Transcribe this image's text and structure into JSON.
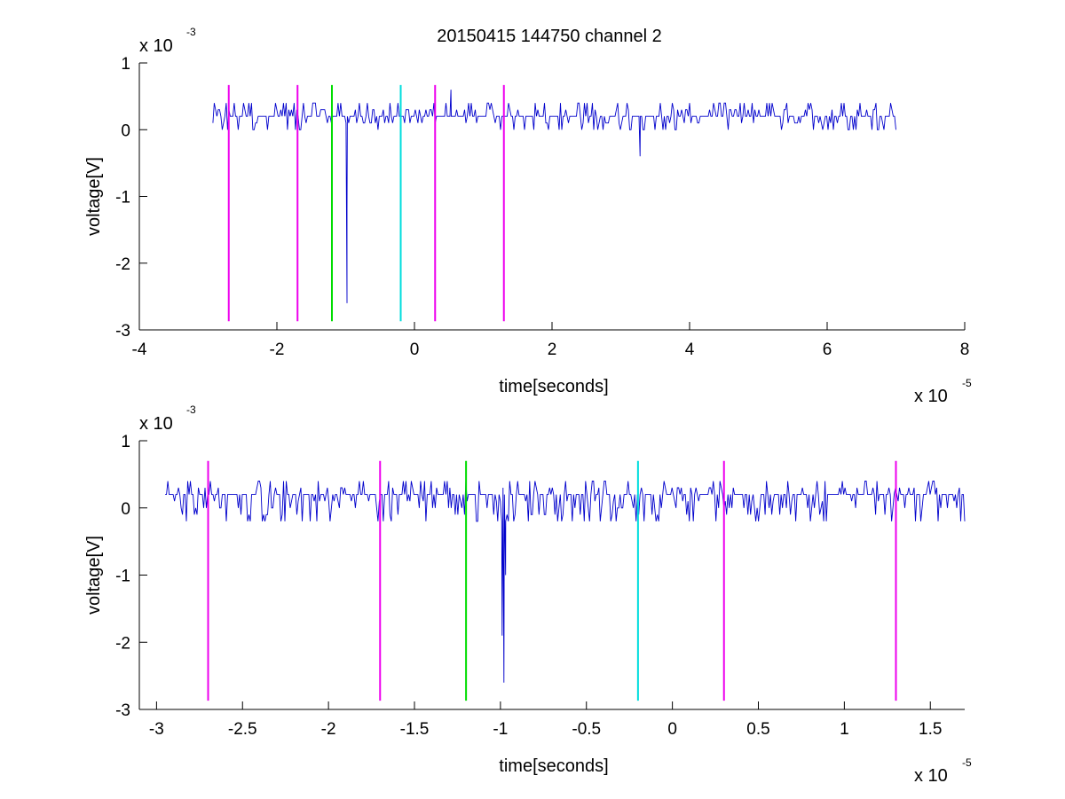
{
  "figure": {
    "title": "20150415 144750 channel 2"
  },
  "chart_data": [
    {
      "type": "line",
      "title": "20150415 144750 channel 2",
      "xlabel": "time[seconds]",
      "ylabel": "voltage[V]",
      "xlim": [
        -4,
        8
      ],
      "ylim": [
        -3,
        1
      ],
      "x_multiplier": {
        "base": "x 10",
        "exponent": "-5"
      },
      "y_multiplier": {
        "base": "x 10",
        "exponent": "-3"
      },
      "x_ticks": [
        -4,
        -2,
        0,
        2,
        4,
        6,
        8
      ],
      "x_tick_labels": [
        "-4",
        "-2",
        "0",
        "2",
        "4",
        "6",
        "8"
      ],
      "y_ticks": [
        -3,
        -2,
        -1,
        0,
        1
      ],
      "y_tick_labels": [
        "-3",
        "-2",
        "-1",
        "0",
        "1"
      ],
      "grid": false,
      "series": [
        {
          "color": "#0000cc",
          "x_range": [
            -2.93,
            7.0
          ],
          "noise_levels": [
            0.0,
            0.1,
            0.2,
            0.3,
            0.4
          ],
          "baseline": 0.2,
          "spikes": [
            {
              "x": -0.98,
              "y": -2.6
            },
            {
              "x": -0.98,
              "y": -1.2
            },
            {
              "x": 0.53,
              "y": 0.6
            },
            {
              "x": 3.28,
              "y": -0.4
            }
          ]
        }
      ],
      "markers": [
        {
          "x": -2.7,
          "y_range": [
            -2.87,
            0.67
          ],
          "color": "#ee00ee"
        },
        {
          "x": -1.7,
          "y_range": [
            -2.87,
            0.67
          ],
          "color": "#ee00ee"
        },
        {
          "x": -1.2,
          "y_range": [
            -2.87,
            0.67
          ],
          "color": "#00dd00"
        },
        {
          "x": -0.2,
          "y_range": [
            -2.87,
            0.67
          ],
          "color": "#00dddd"
        },
        {
          "x": 0.3,
          "y_range": [
            -2.87,
            0.67
          ],
          "color": "#ee00ee"
        },
        {
          "x": 1.3,
          "y_range": [
            -2.87,
            0.67
          ],
          "color": "#ee00ee"
        }
      ]
    },
    {
      "type": "line",
      "title": "",
      "xlabel": "time[seconds]",
      "ylabel": "voltage[V]",
      "xlim": [
        -3.1,
        1.7
      ],
      "ylim": [
        -3,
        1
      ],
      "x_multiplier": {
        "base": "x 10",
        "exponent": "-5"
      },
      "y_multiplier": {
        "base": "x 10",
        "exponent": "-3"
      },
      "x_ticks": [
        -3,
        -2.5,
        -2,
        -1.5,
        -1,
        -0.5,
        0,
        0.5,
        1,
        1.5
      ],
      "x_tick_labels": [
        "-3",
        "-2.5",
        "-2",
        "-1.5",
        "-1",
        "-0.5",
        "0",
        "0.5",
        "1",
        "1.5"
      ],
      "y_ticks": [
        -3,
        -2,
        -1,
        0,
        1
      ],
      "y_tick_labels": [
        "-3",
        "-2",
        "-1",
        "0",
        "1"
      ],
      "grid": false,
      "series": [
        {
          "color": "#0000cc",
          "x_range": [
            -2.95,
            1.7
          ],
          "noise_levels": [
            -0.2,
            -0.1,
            0.0,
            0.1,
            0.2,
            0.3,
            0.4
          ],
          "baseline": 0.2,
          "spikes": [
            {
              "x": -0.98,
              "y": -2.6
            },
            {
              "x": -0.99,
              "y": -1.9
            },
            {
              "x": -0.97,
              "y": -1.0
            }
          ]
        }
      ],
      "markers": [
        {
          "x": -2.7,
          "y_range": [
            -2.87,
            0.7
          ],
          "color": "#ee00ee"
        },
        {
          "x": -1.7,
          "y_range": [
            -2.87,
            0.7
          ],
          "color": "#ee00ee"
        },
        {
          "x": -1.2,
          "y_range": [
            -2.87,
            0.7
          ],
          "color": "#00dd00"
        },
        {
          "x": -0.2,
          "y_range": [
            -2.87,
            0.7
          ],
          "color": "#00dddd"
        },
        {
          "x": 0.3,
          "y_range": [
            -2.87,
            0.7
          ],
          "color": "#ee00ee"
        },
        {
          "x": 1.3,
          "y_range": [
            -2.87,
            0.7
          ],
          "color": "#ee00ee"
        }
      ]
    }
  ]
}
